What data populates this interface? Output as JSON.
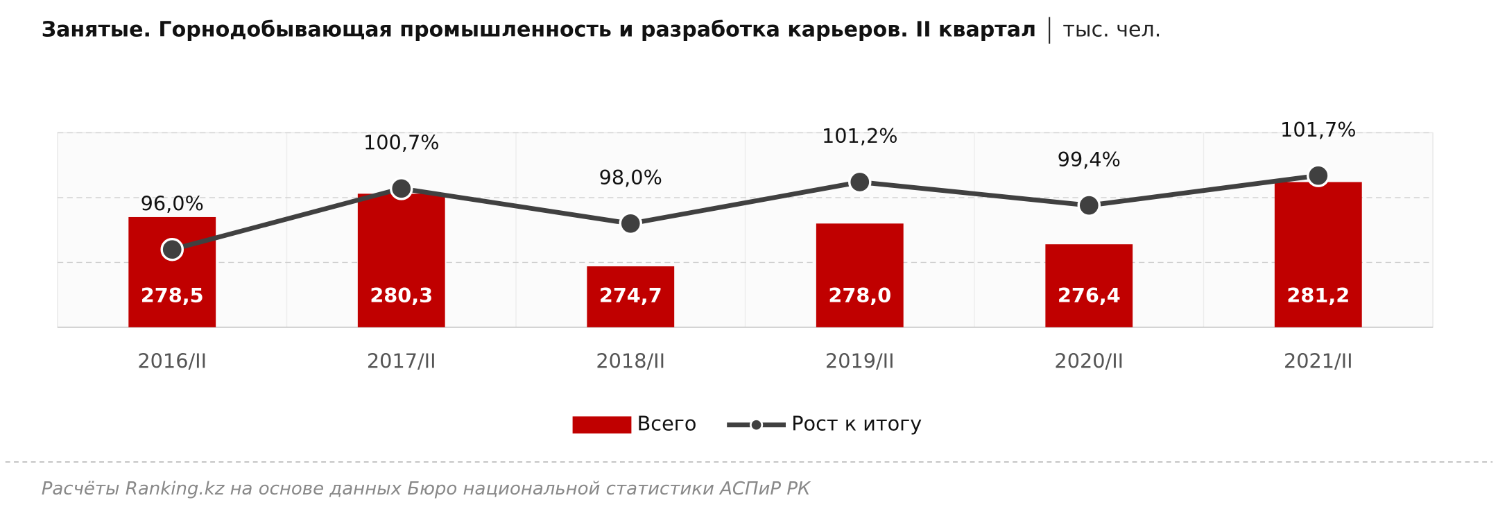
{
  "chart_data": {
    "type": "bar_line",
    "title": "Занятые. Горнодобывающая промышленность и разработка карьеров. II квартал",
    "subtitle": "тыс. чел.",
    "source": "Расчёты Ranking.kz на основе данных  Бюро национальной статистики АСПиР РК",
    "categories": [
      "2016/II",
      "2017/II",
      "2018/II",
      "2019/II",
      "2020/II",
      "2021/II"
    ],
    "series": [
      {
        "name": "Всего",
        "type": "bar",
        "color": "#c00000",
        "values": [
          278.5,
          280.3,
          274.7,
          278.0,
          276.4,
          281.2
        ],
        "value_labels": [
          "278,5",
          "280,3",
          "274,7",
          "278,0",
          "276,4",
          "281,2"
        ]
      },
      {
        "name": "Рост к итогу",
        "type": "line",
        "axis": "y2",
        "color": "#404040",
        "values": [
          96.0,
          100.7,
          98.0,
          101.2,
          99.4,
          101.7
        ],
        "value_labels": [
          "96,0%",
          "100,7%",
          "98,0%",
          "101,2%",
          "99,4%",
          "101,7%"
        ]
      }
    ],
    "ylim": [
      270,
      285
    ],
    "yticks": [
      270,
      275,
      280,
      285
    ],
    "y2lim": [
      90,
      105
    ],
    "grid": true,
    "legend": "bottom"
  }
}
